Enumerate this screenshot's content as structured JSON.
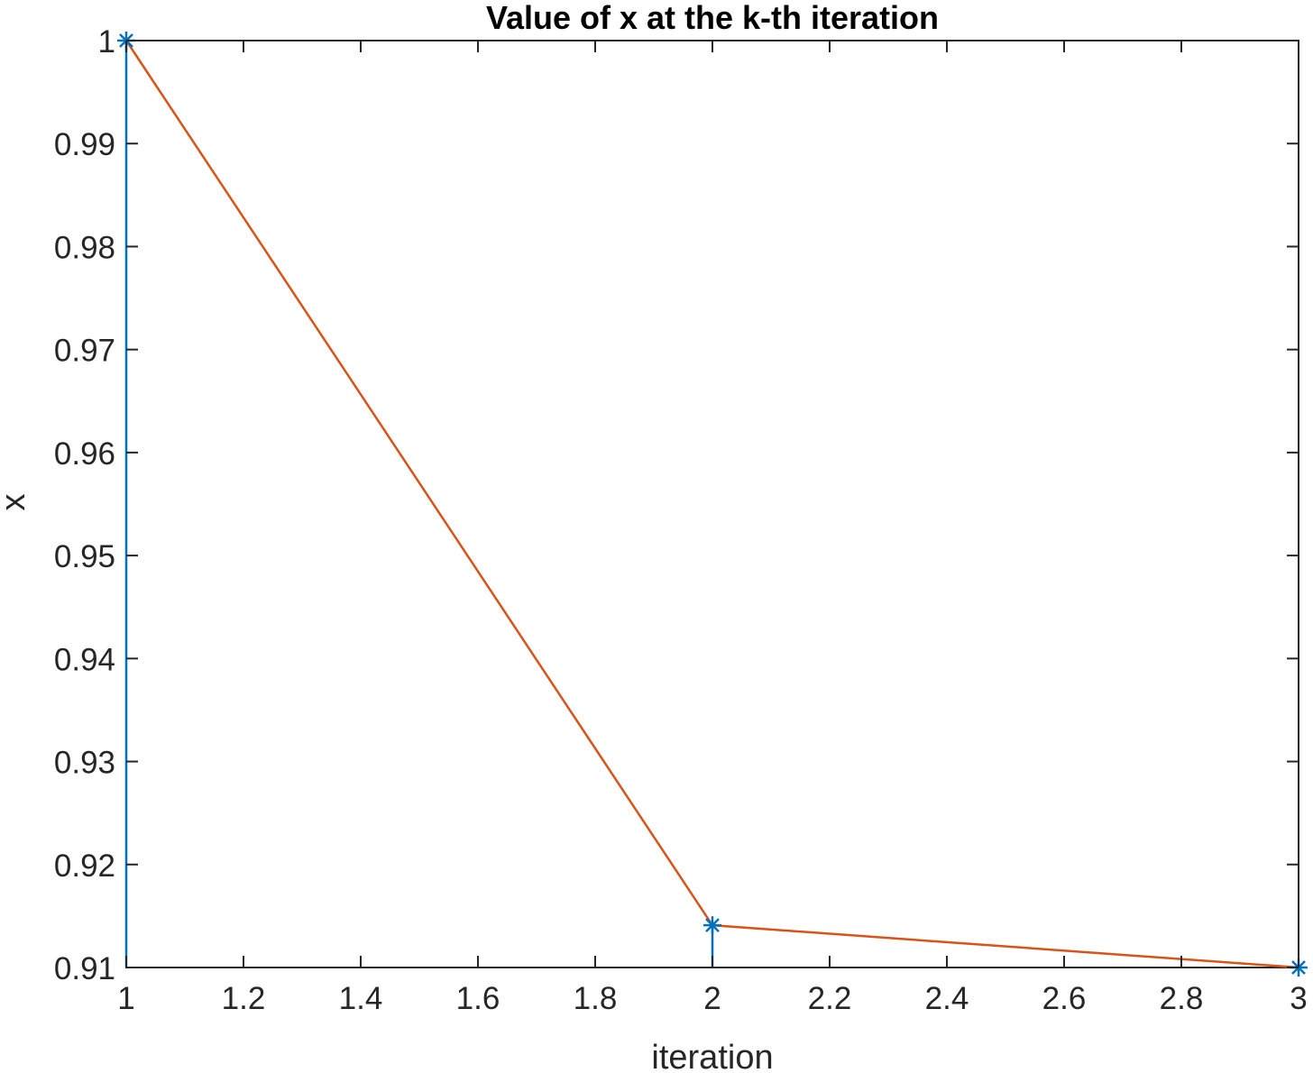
{
  "chart_data": {
    "type": "line",
    "title": "Value of x at the k-th iteration",
    "xlabel": "iteration",
    "ylabel": "x",
    "xlim": [
      1,
      3
    ],
    "ylim": [
      0.91,
      1
    ],
    "xticks": [
      1,
      1.2,
      1.4,
      1.6,
      1.8,
      2,
      2.2,
      2.4,
      2.6,
      2.8,
      3
    ],
    "xtick_labels": [
      "1",
      "1.2",
      "1.4",
      "1.6",
      "1.8",
      "2",
      "2.2",
      "2.4",
      "2.6",
      "2.8",
      "3"
    ],
    "yticks": [
      0.91,
      0.92,
      0.93,
      0.94,
      0.95,
      0.96,
      0.97,
      0.98,
      0.99,
      1
    ],
    "ytick_labels": [
      "0.91",
      "0.92",
      "0.93",
      "0.94",
      "0.95",
      "0.96",
      "0.97",
      "0.98",
      "0.99",
      "1"
    ],
    "grid": false,
    "series": [
      {
        "type": "stem",
        "marker": "asterisk",
        "color": "#0072BD",
        "x": [
          1,
          2,
          3
        ],
        "y": [
          1.0,
          0.9141,
          0.91
        ]
      },
      {
        "type": "line",
        "color": "#D95319",
        "x": [
          1,
          2,
          3
        ],
        "y": [
          1.0,
          0.9141,
          0.91
        ]
      }
    ]
  }
}
